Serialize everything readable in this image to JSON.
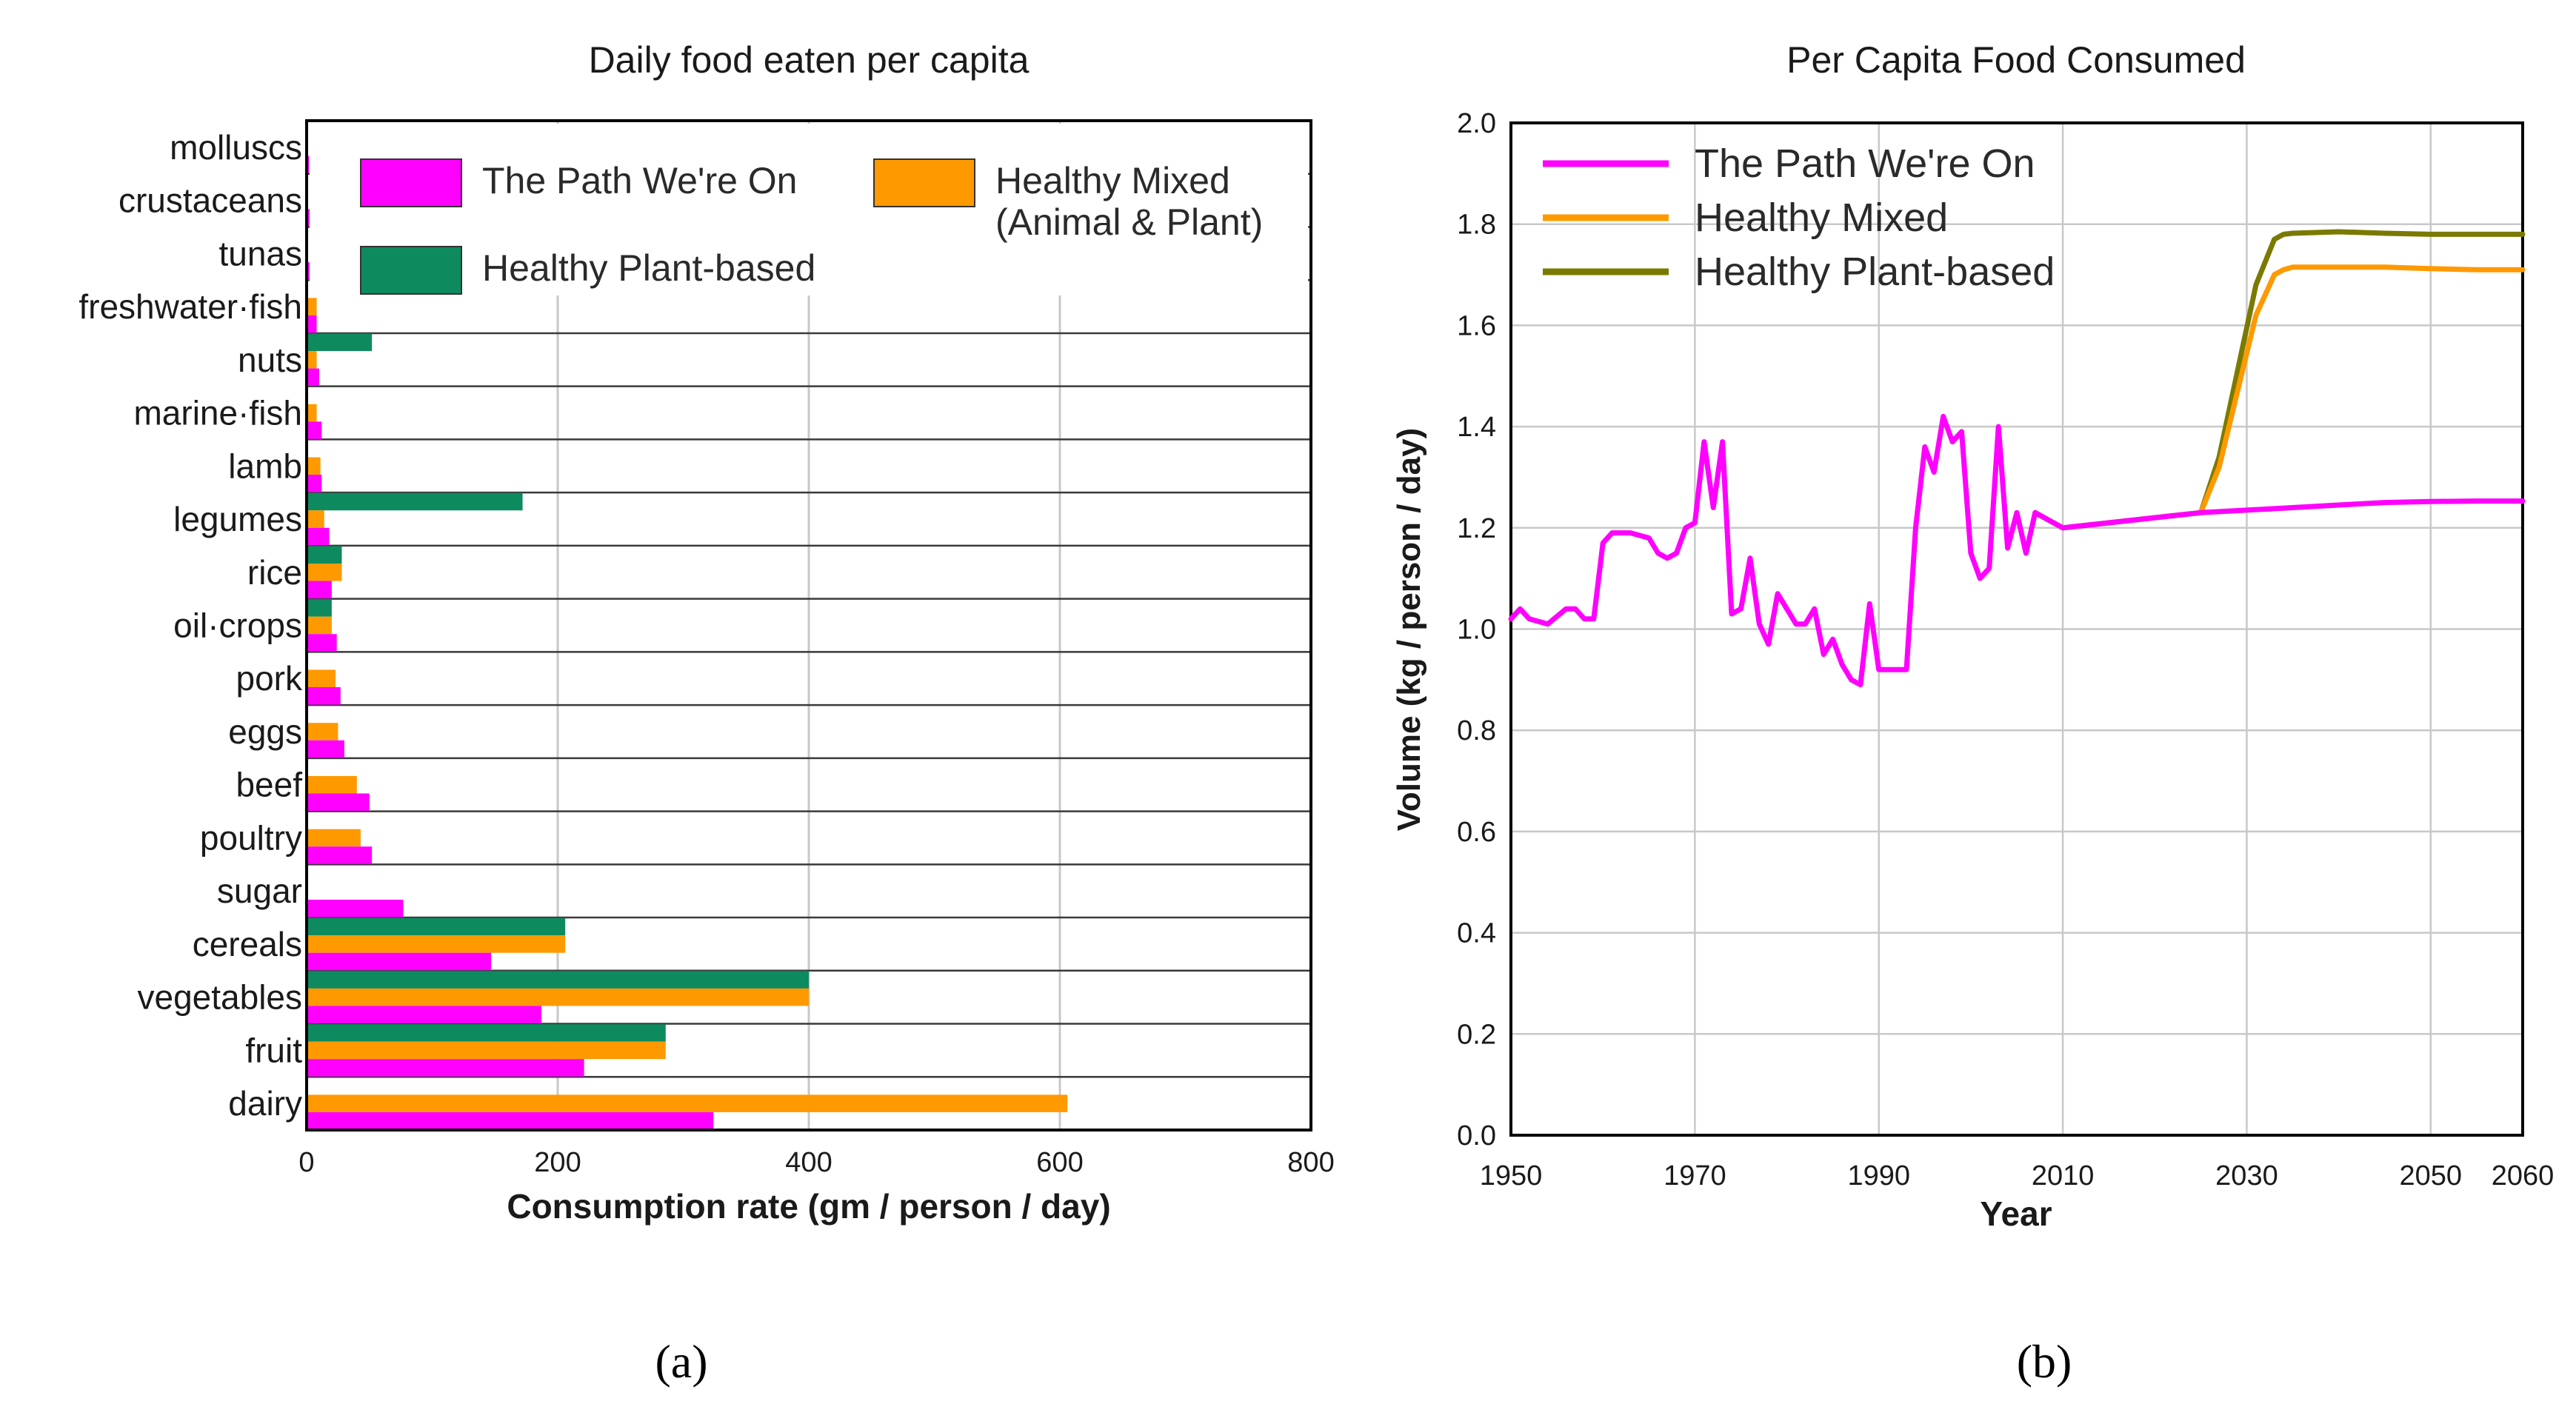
{
  "colors": {
    "path": "#ff00ff",
    "mixed": "#ff9900",
    "plant": "#0e8a5f",
    "plant_line": "#7a7a00",
    "grid": "#c8c8c8",
    "axis": "#000000"
  },
  "panels": {
    "a_label": "(a)",
    "b_label": "(b)"
  },
  "chart_data": [
    {
      "type": "bar",
      "orientation": "horizontal",
      "title": "Daily food eaten per capita",
      "xlabel": "Consumption rate (gm / person / day)",
      "ylabel": "",
      "xlim": [
        0,
        800
      ],
      "xticks": [
        "0",
        "200",
        "400",
        "600",
        "800"
      ],
      "categories": [
        "molluscs",
        "crustaceans",
        "tunas",
        "freshwater·fish",
        "nuts",
        "marine·fish",
        "lamb",
        "legumes",
        "rice",
        "oil·crops",
        "pork",
        "eggs",
        "beef",
        "poultry",
        "sugar",
        "cereals",
        "vegetables",
        "fruit",
        "dairy"
      ],
      "series": [
        {
          "name": "Healthy Plant-based",
          "key": "plant",
          "values": [
            0,
            0,
            0,
            0,
            52,
            0,
            0,
            172,
            28,
            20,
            0,
            0,
            0,
            0,
            0,
            206,
            400,
            286,
            0
          ]
        },
        {
          "name": "Healthy Mixed (Animal & Plant)",
          "key": "mixed",
          "values": [
            0,
            0,
            1,
            8,
            8,
            8,
            11,
            14,
            28,
            20,
            23,
            25,
            40,
            43,
            0,
            206,
            400,
            286,
            606
          ]
        },
        {
          "name": "The Path We're On",
          "key": "path",
          "values": [
            2,
            3,
            5,
            8,
            10,
            12,
            12,
            18,
            20,
            24,
            27,
            30,
            50,
            52,
            77,
            147,
            187,
            221,
            324
          ]
        }
      ],
      "legend": [
        {
          "label": "The Path We're On",
          "key": "path"
        },
        {
          "label": "Healthy Mixed\n(Animal & Plant)",
          "key": "mixed"
        },
        {
          "label": "Healthy Plant-based",
          "key": "plant"
        }
      ],
      "legend_position": "top"
    },
    {
      "type": "line",
      "title": "Per Capita Food Consumed",
      "xlabel": "Year",
      "ylabel": "Volume (kg / person / day)",
      "xlim": [
        1950,
        2060
      ],
      "ylim": [
        0,
        2.0
      ],
      "xticks": [
        "1950",
        "1970",
        "1990",
        "2010",
        "2030",
        "2050",
        "2060"
      ],
      "yticks": [
        "0.0",
        "0.2",
        "0.4",
        "0.6",
        "0.8",
        "1.0",
        "1.2",
        "1.4",
        "1.6",
        "1.8",
        "2.0"
      ],
      "legend_position": "top-left",
      "series": [
        {
          "name": "The Path We're On",
          "key": "path",
          "x": [
            1950,
            1951,
            1952,
            1954,
            1956,
            1957,
            1958,
            1959,
            1960,
            1961,
            1963,
            1965,
            1966,
            1967,
            1968,
            1969,
            1970,
            1971,
            1972,
            1973,
            1974,
            1975,
            1976,
            1977,
            1978,
            1979,
            1980,
            1981,
            1982,
            1983,
            1984,
            1985,
            1986,
            1987,
            1988,
            1989,
            1990,
            1991,
            1992,
            1993,
            1994,
            1995,
            1996,
            1997,
            1998,
            1999,
            2000,
            2001,
            2002,
            2003,
            2004,
            2005,
            2006,
            2007,
            2010,
            2015,
            2020,
            2025,
            2030,
            2035,
            2040,
            2045,
            2050,
            2055,
            2060
          ],
          "y": [
            1.02,
            1.04,
            1.02,
            1.01,
            1.04,
            1.04,
            1.02,
            1.02,
            1.17,
            1.19,
            1.19,
            1.18,
            1.15,
            1.14,
            1.15,
            1.2,
            1.21,
            1.37,
            1.24,
            1.37,
            1.03,
            1.04,
            1.14,
            1.01,
            0.97,
            1.07,
            1.04,
            1.01,
            1.01,
            1.04,
            0.95,
            0.98,
            0.93,
            0.9,
            0.89,
            1.05,
            0.92,
            0.92,
            0.92,
            0.92,
            1.2,
            1.36,
            1.31,
            1.42,
            1.37,
            1.39,
            1.15,
            1.1,
            1.12,
            1.4,
            1.16,
            1.23,
            1.15,
            1.23,
            1.2,
            1.21,
            1.22,
            1.23,
            1.235,
            1.24,
            1.245,
            1.25,
            1.252,
            1.253,
            1.253
          ]
        },
        {
          "name": "Healthy Mixed",
          "key": "mixed",
          "x": [
            2007,
            2010,
            2015,
            2020,
            2025,
            2027,
            2029,
            2031,
            2033,
            2034,
            2035,
            2040,
            2045,
            2050,
            2055,
            2060
          ],
          "y": [
            1.23,
            1.2,
            1.21,
            1.22,
            1.23,
            1.32,
            1.47,
            1.62,
            1.7,
            1.71,
            1.715,
            1.715,
            1.715,
            1.712,
            1.71,
            1.71
          ]
        },
        {
          "name": "Healthy Plant-based",
          "key": "plant_line",
          "x": [
            2007,
            2010,
            2015,
            2020,
            2025,
            2027,
            2029,
            2031,
            2033,
            2034,
            2035,
            2040,
            2045,
            2050,
            2055,
            2060
          ],
          "y": [
            1.23,
            1.2,
            1.21,
            1.22,
            1.23,
            1.34,
            1.51,
            1.68,
            1.77,
            1.78,
            1.782,
            1.785,
            1.782,
            1.78,
            1.78,
            1.78
          ]
        }
      ],
      "legend": [
        {
          "label": "The Path We're On",
          "key": "path"
        },
        {
          "label": "Healthy Mixed",
          "key": "mixed"
        },
        {
          "label": "Healthy Plant-based",
          "key": "plant_line"
        }
      ]
    }
  ]
}
